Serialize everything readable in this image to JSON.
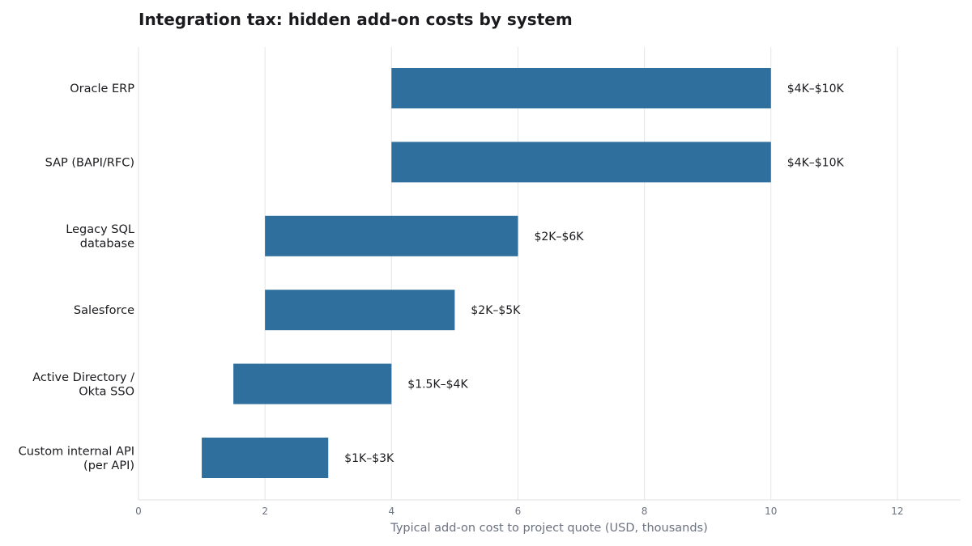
{
  "chart_data": {
    "type": "bar",
    "orientation": "horizontal",
    "title": "Integration tax: hidden add-on costs by system",
    "xlabel": "Typical add-on cost to project quote (USD, thousands)",
    "ylabel": "",
    "xlim": [
      0,
      13
    ],
    "xticks": [
      0,
      2,
      4,
      6,
      8,
      10,
      12
    ],
    "grid": "vertical",
    "bar_color": "#2e6f9e",
    "categories": [
      [
        "Oracle ERP"
      ],
      [
        "SAP (BAPI/RFC)"
      ],
      [
        "Legacy SQL",
        "database"
      ],
      [
        "Salesforce"
      ],
      [
        "Active Directory /",
        "Okta SSO"
      ],
      [
        "Custom internal API",
        "(per API)"
      ]
    ],
    "ranges": [
      [
        4,
        10
      ],
      [
        4,
        10
      ],
      [
        2,
        6
      ],
      [
        2,
        5
      ],
      [
        1.5,
        4
      ],
      [
        1,
        3
      ]
    ],
    "data_labels": [
      "$4K–$10K",
      "$4K–$10K",
      "$2K–$6K",
      "$2K–$5K",
      "$1.5K–$4K",
      "$1K–$3K"
    ]
  }
}
